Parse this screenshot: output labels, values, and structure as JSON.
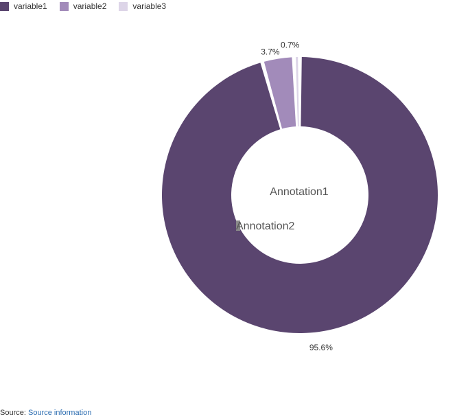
{
  "chart_data": {
    "type": "pie",
    "donut": true,
    "categories": [
      "variable1",
      "variable2",
      "variable3"
    ],
    "values": [
      95.6,
      3.7,
      0.7
    ],
    "value_labels": [
      "95.6%",
      "3.7%",
      "0.7%"
    ],
    "colors": [
      "#5a456f",
      "#a28bba",
      "#ddd5e8"
    ],
    "legend_position": "top-left",
    "annotations": [
      "Annotation1",
      "Annotation2"
    ]
  },
  "legend": {
    "items": [
      {
        "label": "variable1",
        "color": "#5a456f"
      },
      {
        "label": "variable2",
        "color": "#a28bba"
      },
      {
        "label": "variable3",
        "color": "#ddd5e8"
      }
    ]
  },
  "source": {
    "prefix": "Source:",
    "link_text": "Source information"
  }
}
